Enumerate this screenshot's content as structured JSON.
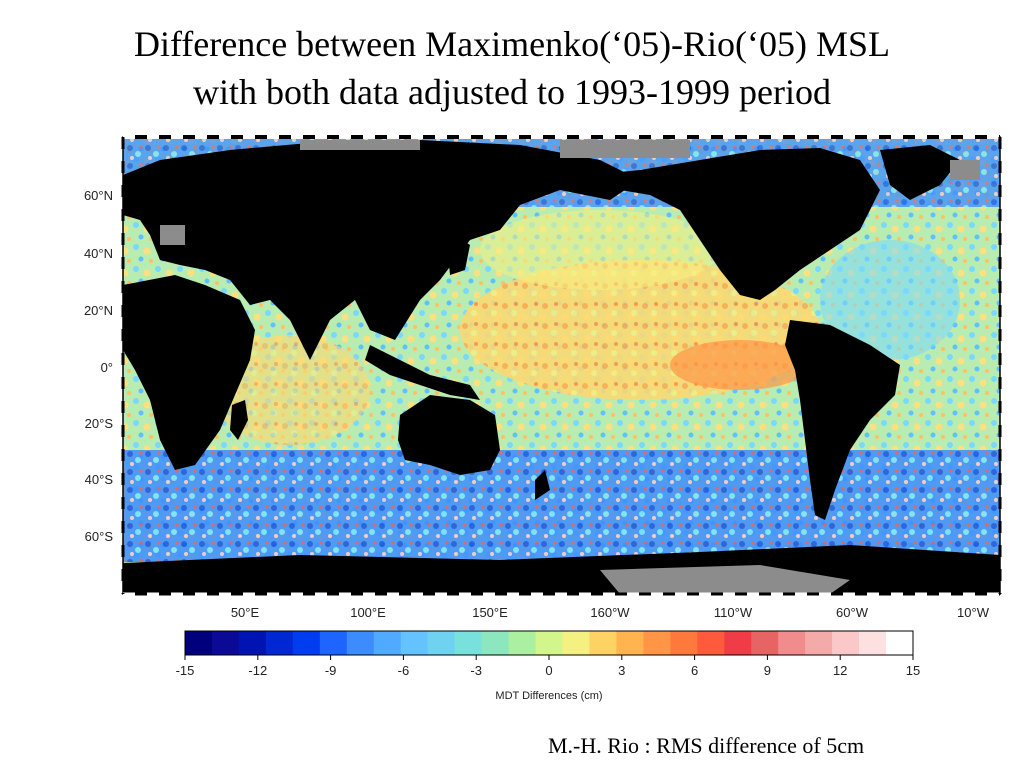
{
  "slide": {
    "title_line1": "Difference between Maximenko(‘05)-Rio(‘05) MSL",
    "title_line2": "with both data adjusted to 1993-1999 period",
    "footnote": "M.-H. Rio : RMS difference of 5cm"
  },
  "map": {
    "lat_ticks": [
      "60°N",
      "40°N",
      "20°N",
      "0°",
      "20°S",
      "40°S",
      "60°S"
    ],
    "lon_ticks": [
      "50°E",
      "100°E",
      "150°E",
      "160°W",
      "110°W",
      "60°W",
      "10°W"
    ],
    "colorbar_title": "MDT Differences (cm)",
    "colorbar_ticks": [
      "-15",
      "-12",
      "-9",
      "-6",
      "-3",
      "0",
      "3",
      "6",
      "9",
      "12",
      "15"
    ],
    "colorbar_range": [
      -15,
      15
    ],
    "colorbar_colors": [
      "#00007e",
      "#0a0a96",
      "#0014b4",
      "#0028d2",
      "#003cf0",
      "#1e64ff",
      "#3c8cff",
      "#50aaff",
      "#64c3ff",
      "#6ed2f0",
      "#78e1dc",
      "#8ce6be",
      "#aaf0a0",
      "#d2f58c",
      "#f5f082",
      "#ffd264",
      "#ffb450",
      "#ff9646",
      "#ff783c",
      "#ff5a3c",
      "#f03c46",
      "#e66464",
      "#f08c8c",
      "#f5aaaa",
      "#fac8c8",
      "#fde1e1",
      "#ffffff"
    ],
    "colors": {
      "land": "#000000",
      "ice": "#8c8c8c",
      "ocean_mid": "#a8e0c8",
      "frame": "#000000"
    }
  }
}
